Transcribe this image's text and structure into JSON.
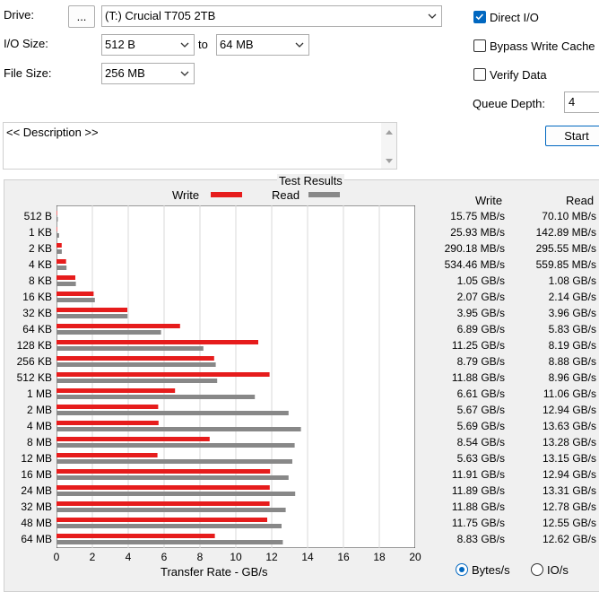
{
  "drive": {
    "label": "Drive:",
    "browse_label": "...",
    "selected": "(T:) Crucial T705 2TB"
  },
  "io_size": {
    "label": "I/O Size:",
    "from": "512 B",
    "to_label": "to",
    "to": "64 MB"
  },
  "file_size": {
    "label": "File Size:",
    "value": "256 MB"
  },
  "options": {
    "direct_io": {
      "label": "Direct I/O",
      "checked": true
    },
    "bypass_write_cache": {
      "label": "Bypass Write Cache",
      "checked": false
    },
    "verify_data": {
      "label": "Verify Data",
      "checked": false
    }
  },
  "queue_depth": {
    "label": "Queue Depth:",
    "value": "4"
  },
  "start_label": "Start",
  "description": "<< Description >>",
  "results": {
    "title": "Test Results",
    "write_header": "Write",
    "read_header": "Read",
    "unit_bytes_label": "Bytes/s",
    "unit_io_label": "IO/s",
    "selected_unit": "Bytes/s"
  },
  "colors": {
    "write": "#e61c1c",
    "read": "#888888",
    "accent": "#0067c0"
  },
  "chart_data": {
    "type": "bar",
    "orientation": "horizontal",
    "xlabel": "Transfer Rate - GB/s",
    "xlim": [
      0,
      20
    ],
    "xticks": [
      "0",
      "2",
      "4",
      "6",
      "8",
      "10",
      "12",
      "14",
      "16",
      "18",
      "20"
    ],
    "grid": true,
    "legend_position": "top",
    "categories": [
      "512 B",
      "1 KB",
      "2 KB",
      "4 KB",
      "8 KB",
      "16 KB",
      "32 KB",
      "64 KB",
      "128 KB",
      "256 KB",
      "512 KB",
      "1 MB",
      "2 MB",
      "4 MB",
      "8 MB",
      "12 MB",
      "16 MB",
      "24 MB",
      "32 MB",
      "48 MB",
      "64 MB"
    ],
    "series": [
      {
        "name": "Write",
        "values": [
          0.01575,
          0.02593,
          0.29018,
          0.53446,
          1.05,
          2.07,
          3.95,
          6.89,
          11.25,
          8.79,
          11.88,
          6.61,
          5.67,
          5.69,
          8.54,
          5.63,
          11.91,
          11.89,
          11.88,
          11.75,
          8.83
        ],
        "labels": [
          "15.75 MB/s",
          "25.93 MB/s",
          "290.18 MB/s",
          "534.46 MB/s",
          "1.05 GB/s",
          "2.07 GB/s",
          "3.95 GB/s",
          "6.89 GB/s",
          "11.25 GB/s",
          "8.79 GB/s",
          "11.88 GB/s",
          "6.61 GB/s",
          "5.67 GB/s",
          "5.69 GB/s",
          "8.54 GB/s",
          "5.63 GB/s",
          "11.91 GB/s",
          "11.89 GB/s",
          "11.88 GB/s",
          "11.75 GB/s",
          "8.83 GB/s"
        ]
      },
      {
        "name": "Read",
        "values": [
          0.0701,
          0.14289,
          0.29555,
          0.55985,
          1.08,
          2.14,
          3.96,
          5.83,
          8.19,
          8.88,
          8.96,
          11.06,
          12.94,
          13.63,
          13.28,
          13.15,
          12.94,
          13.31,
          12.78,
          12.55,
          12.62
        ],
        "labels": [
          "70.10 MB/s",
          "142.89 MB/s",
          "295.55 MB/s",
          "559.85 MB/s",
          "1.08 GB/s",
          "2.14 GB/s",
          "3.96 GB/s",
          "5.83 GB/s",
          "8.19 GB/s",
          "8.88 GB/s",
          "8.96 GB/s",
          "11.06 GB/s",
          "12.94 GB/s",
          "13.63 GB/s",
          "13.28 GB/s",
          "13.15 GB/s",
          "12.94 GB/s",
          "13.31 GB/s",
          "12.78 GB/s",
          "12.55 GB/s",
          "12.62 GB/s"
        ]
      }
    ]
  }
}
